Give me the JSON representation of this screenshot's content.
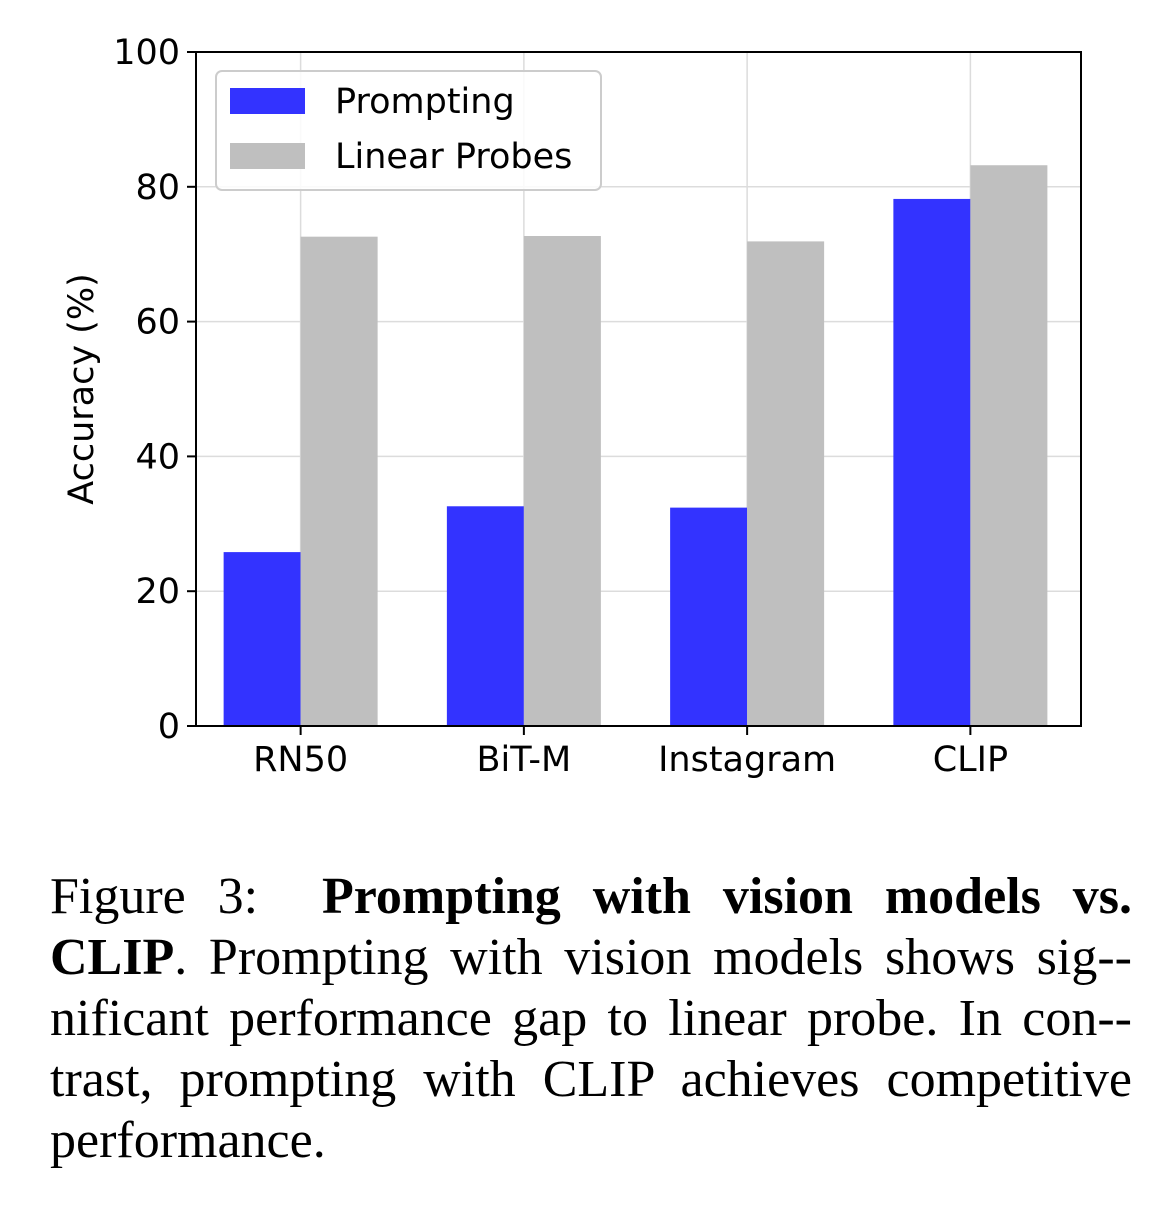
{
  "chart_data": {
    "type": "bar",
    "categories": [
      "RN50",
      "BiT-M",
      "Instagram",
      "CLIP"
    ],
    "series": [
      {
        "name": "Prompting",
        "values": [
          25.8,
          32.6,
          32.4,
          78.2
        ],
        "color": "#3333ff"
      },
      {
        "name": "Linear Probes",
        "values": [
          72.6,
          72.7,
          71.9,
          83.2
        ],
        "color": "#bfbfbf"
      }
    ],
    "title": "",
    "xlabel": "",
    "ylabel": "Accuracy (%)",
    "ylim": [
      0,
      100
    ],
    "yticks": [
      0,
      20,
      40,
      60,
      80,
      100
    ],
    "grid": true,
    "legend_position": "top-left"
  },
  "caption": {
    "label": "Figure 3:",
    "title": "Prompting with vision models vs. CLIP",
    "body": ". Prompting with vision models shows sig-­nificant performance gap to linear probe. In con-­trast, prompting with CLIP achieves competitive performance."
  }
}
